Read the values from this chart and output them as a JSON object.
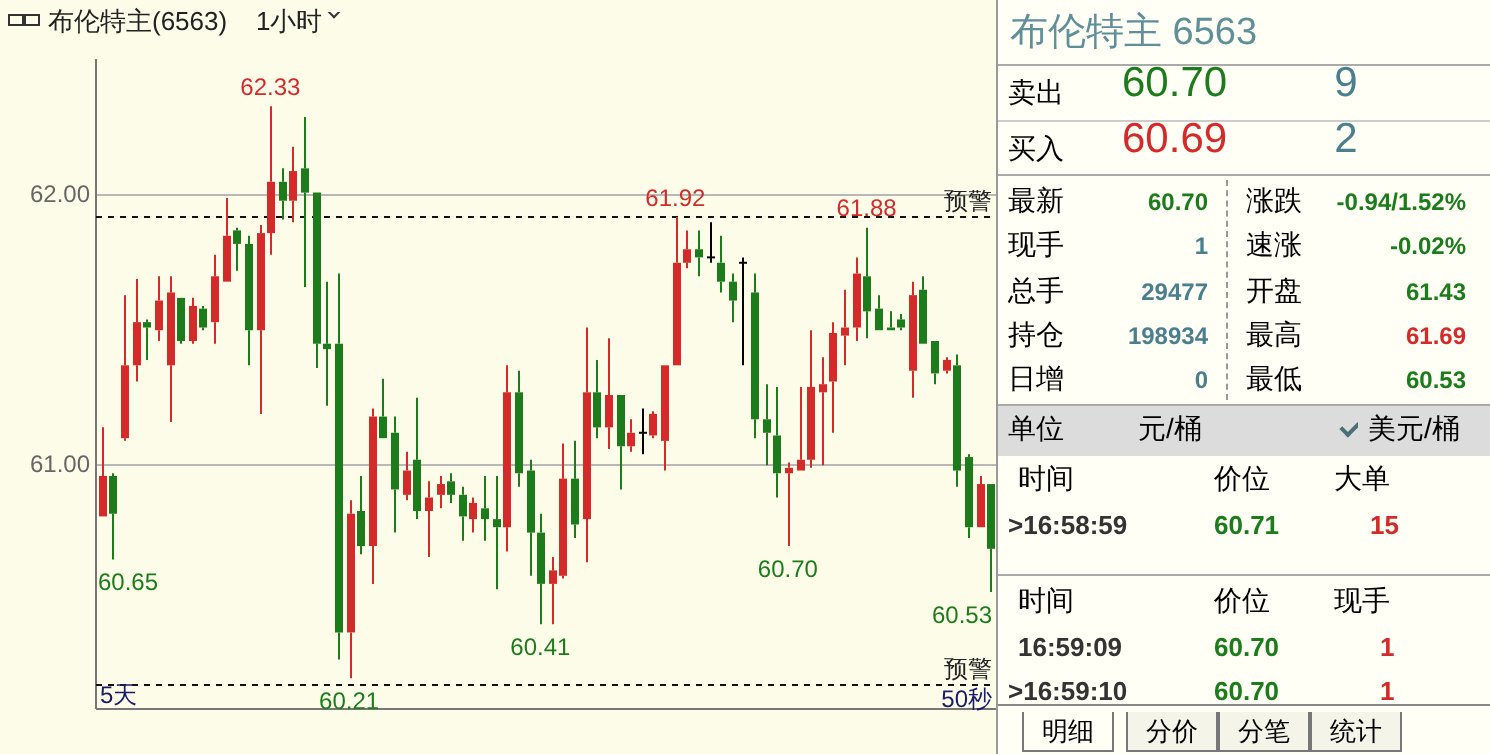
{
  "chart_data": [
    {
      "type": "candlestick",
      "title": "布伦特主(6563)",
      "subtitle": "1小时",
      "categories": [
        null,
        null,
        null,
        null,
        null,
        null,
        null,
        null,
        null,
        null,
        null,
        null,
        null,
        null,
        null,
        null,
        null,
        null,
        null,
        null,
        null,
        null,
        null,
        null,
        null,
        null,
        null,
        null,
        null,
        null,
        null,
        null,
        null,
        null,
        null,
        null,
        null,
        null,
        null,
        null,
        null,
        null,
        null,
        null,
        null,
        null,
        null,
        null,
        null,
        null,
        null,
        null,
        null,
        null,
        null,
        null,
        null,
        null,
        null,
        null,
        null,
        null,
        null,
        null,
        null,
        null,
        null,
        null,
        null,
        null,
        null,
        null,
        null,
        null,
        null,
        null,
        null,
        null,
        null,
        null
      ],
      "ohlc": [
        [
          60.81,
          61.14,
          60.81,
          60.96
        ],
        [
          60.96,
          60.97,
          60.65,
          60.82
        ],
        [
          61.1,
          61.63,
          61.09,
          61.37
        ],
        [
          61.37,
          61.69,
          61.31,
          61.53
        ],
        [
          61.53,
          61.54,
          61.39,
          61.51
        ],
        [
          61.5,
          61.7,
          61.46,
          61.61
        ],
        [
          61.37,
          61.7,
          61.16,
          61.64
        ],
        [
          61.62,
          61.62,
          61.45,
          61.46
        ],
        [
          61.46,
          61.62,
          61.45,
          61.59
        ],
        [
          61.58,
          61.59,
          61.5,
          61.51
        ],
        [
          61.53,
          61.78,
          61.45,
          61.7
        ],
        [
          61.68,
          61.99,
          61.68,
          61.85
        ],
        [
          61.87,
          61.88,
          61.72,
          61.82
        ],
        [
          61.82,
          61.85,
          61.37,
          61.5
        ],
        [
          61.5,
          61.89,
          61.19,
          61.86
        ],
        [
          61.86,
          62.33,
          61.78,
          62.05
        ],
        [
          62.05,
          62.1,
          61.91,
          61.98
        ],
        [
          61.98,
          62.18,
          61.9,
          62.09
        ],
        [
          62.1,
          62.29,
          61.66,
          62.01
        ],
        [
          62.01,
          62.01,
          61.36,
          61.45
        ],
        [
          61.45,
          61.68,
          61.22,
          61.43
        ],
        [
          61.45,
          61.71,
          60.28,
          60.38
        ],
        [
          60.38,
          60.87,
          60.21,
          60.82
        ],
        [
          60.83,
          60.96,
          60.67,
          60.7
        ],
        [
          60.7,
          61.21,
          60.56,
          61.18
        ],
        [
          61.18,
          61.32,
          61.1,
          61.1
        ],
        [
          61.12,
          61.18,
          60.75,
          60.91
        ],
        [
          60.89,
          61.05,
          60.87,
          60.98
        ],
        [
          61.02,
          61.25,
          60.8,
          60.83
        ],
        [
          60.83,
          60.94,
          60.66,
          60.88
        ],
        [
          60.89,
          60.96,
          60.84,
          60.93
        ],
        [
          60.94,
          60.97,
          60.86,
          60.89
        ],
        [
          60.89,
          60.92,
          60.72,
          60.81
        ],
        [
          60.8,
          60.88,
          60.75,
          60.86
        ],
        [
          60.84,
          60.96,
          60.72,
          60.8
        ],
        [
          60.8,
          60.96,
          60.54,
          60.77
        ],
        [
          60.77,
          61.37,
          60.68,
          61.27
        ],
        [
          61.27,
          61.35,
          60.92,
          60.97
        ],
        [
          60.98,
          61.02,
          60.59,
          60.75
        ],
        [
          60.75,
          60.82,
          60.41,
          60.56
        ],
        [
          60.56,
          60.66,
          60.41,
          60.61
        ],
        [
          60.59,
          61.08,
          60.58,
          60.95
        ],
        [
          60.95,
          61.09,
          60.73,
          60.78
        ],
        [
          60.8,
          61.51,
          60.64,
          61.27
        ],
        [
          61.27,
          61.39,
          61.1,
          61.14
        ],
        [
          61.14,
          61.47,
          61.06,
          61.26
        ],
        [
          61.26,
          61.26,
          60.91,
          61.07
        ],
        [
          61.07,
          61.17,
          61.05,
          61.12
        ],
        [
          61.12,
          61.21,
          61.04,
          61.12
        ],
        [
          61.11,
          61.2,
          61.1,
          61.19
        ],
        [
          61.09,
          61.37,
          60.98,
          61.37
        ],
        [
          61.37,
          61.92,
          61.37,
          61.75
        ],
        [
          61.75,
          61.87,
          61.73,
          61.8
        ],
        [
          61.8,
          61.87,
          61.7,
          61.77
        ],
        [
          61.77,
          61.9,
          61.75,
          61.77
        ],
        [
          61.75,
          61.85,
          61.64,
          61.68
        ],
        [
          61.68,
          61.71,
          61.53,
          61.61
        ],
        [
          61.75,
          61.77,
          61.37,
          61.75
        ],
        [
          61.64,
          61.71,
          61.1,
          61.17
        ],
        [
          61.17,
          61.3,
          61.0,
          61.12
        ],
        [
          61.11,
          61.29,
          60.88,
          60.97
        ],
        [
          60.97,
          61.01,
          60.7,
          60.99
        ],
        [
          60.98,
          61.29,
          60.98,
          61.02
        ],
        [
          61.02,
          61.5,
          60.99,
          61.29
        ],
        [
          61.27,
          61.4,
          61.0,
          61.3
        ],
        [
          61.31,
          61.53,
          61.12,
          61.49
        ],
        [
          61.48,
          61.65,
          61.37,
          61.51
        ],
        [
          61.51,
          61.77,
          61.46,
          61.71
        ],
        [
          61.7,
          61.88,
          61.47,
          61.57
        ],
        [
          61.58,
          61.63,
          61.5,
          61.5
        ],
        [
          61.51,
          61.57,
          61.5,
          61.5
        ],
        [
          61.54,
          61.56,
          61.5,
          61.51
        ],
        [
          61.35,
          61.68,
          61.25,
          61.63
        ],
        [
          61.65,
          61.7,
          61.45,
          61.45
        ],
        [
          61.46,
          61.46,
          61.3,
          61.34
        ],
        [
          61.35,
          61.4,
          61.34,
          61.39
        ],
        [
          61.37,
          61.41,
          60.92,
          60.98
        ],
        [
          61.03,
          61.04,
          60.73,
          60.77
        ],
        [
          60.77,
          60.96,
          60.77,
          60.93
        ],
        [
          60.93,
          60.93,
          60.53,
          60.69
        ]
      ],
      "colors": [
        "#d42a2a",
        "#1c7c1c",
        "#d42a2a",
        "#d42a2a",
        "#1c7c1c",
        "#d42a2a",
        "#d42a2a",
        "#1c7c1c",
        "#d42a2a",
        "#1c7c1c",
        "#d42a2a",
        "#d42a2a",
        "#1c7c1c",
        "#1c7c1c",
        "#d42a2a",
        "#d42a2a",
        "#1c7c1c",
        "#d42a2a",
        "#1c7c1c",
        "#1c7c1c",
        "#1c7c1c",
        "#1c7c1c",
        "#d42a2a",
        "#1c7c1c",
        "#d42a2a",
        "#1c7c1c",
        "#1c7c1c",
        "#d42a2a",
        "#1c7c1c",
        "#d42a2a",
        "#d42a2a",
        "#1c7c1c",
        "#1c7c1c",
        "#d42a2a",
        "#1c7c1c",
        "#1c7c1c",
        "#d42a2a",
        "#1c7c1c",
        "#1c7c1c",
        "#1c7c1c",
        "#d42a2a",
        "#d42a2a",
        "#1c7c1c",
        "#d42a2a",
        "#1c7c1c",
        "#d42a2a",
        "#1c7c1c",
        "#d42a2a",
        "#000000",
        "#d42a2a",
        "#d42a2a",
        "#d42a2a",
        "#d42a2a",
        "#1c7c1c",
        "#000000",
        "#1c7c1c",
        "#1c7c1c",
        "#000000",
        "#1c7c1c",
        "#1c7c1c",
        "#1c7c1c",
        "#d42a2a",
        "#d42a2a",
        "#d42a2a",
        "#d42a2a",
        "#d42a2a",
        "#d42a2a",
        "#d42a2a",
        "#1c7c1c",
        "#1c7c1c",
        "#1c7c1c",
        "#1c7c1c",
        "#d42a2a",
        "#1c7c1c",
        "#1c7c1c",
        "#d42a2a",
        "#1c7c1c",
        "#1c7c1c",
        "#d42a2a",
        "#1c7c1c"
      ],
      "ylim": [
        60.1,
        62.5
      ],
      "yticks": [
        {
          "value": 61,
          "label": "61.00"
        },
        {
          "value": 62,
          "label": "62.00"
        }
      ],
      "grid": "y",
      "ref_lines": [
        {
          "axis": "y",
          "value": 61.92,
          "label": "预警",
          "line_style": "dashed"
        },
        {
          "axis": "y",
          "value": 60.19,
          "label": "预警",
          "line_style": "dashed"
        }
      ],
      "annotations": [
        "62.33",
        "60.65",
        "60.21",
        "60.41",
        "61.92",
        "60.70",
        "61.88",
        "60.53",
        "5天",
        "50秒"
      ]
    },
    {
      "type": "other",
      "title": "布伦特主 6563",
      "annotations": [
        "卖出",
        "60.70",
        "9",
        "买入",
        "60.69",
        "2",
        "最新",
        "60.70",
        "涨跌",
        "-0.94/1.52%",
        "现手",
        "1",
        "速涨",
        "-0.02%",
        "总手",
        "29477",
        "开盘",
        "61.43",
        "持仓",
        "198934",
        "最高",
        "61.69",
        "日增",
        "0",
        "最低",
        "60.53",
        "单位",
        "元/桶",
        "美元/桶",
        "时间",
        "价位",
        "大单",
        ">16:58:59",
        "60.71",
        "15",
        "时间",
        "价位",
        "现手",
        "16:59:09",
        "60.70",
        "1",
        ">16:59:10",
        "60.70",
        "1",
        "明细",
        "分价",
        "分笔",
        "统计"
      ]
    }
  ]
}
